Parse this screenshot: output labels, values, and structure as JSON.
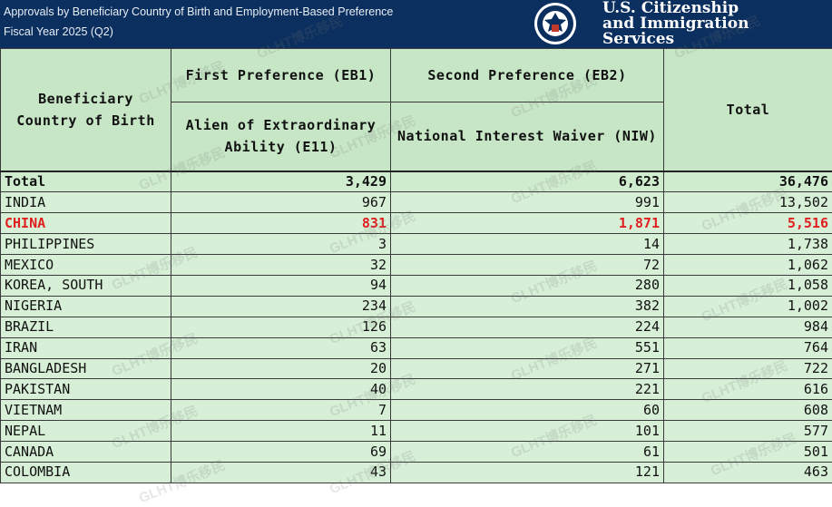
{
  "banner": {
    "title_line1": "Approvals by Beneficiary Country of Birth and Employment-Based Preference",
    "title_line2": "Fiscal Year 2025 (Q2)",
    "agency_line1": "U.S. Citizenship",
    "agency_line2": "and Immigration",
    "agency_line3": "Services",
    "seal_icon": "dhs-seal-icon",
    "bg_color": "#0b2f5e"
  },
  "watermark_text": "GLHT博乐移民",
  "table": {
    "header": {
      "country_col": "Beneficiary Country of Birth",
      "eb1_group": "First Preference (EB1)",
      "eb1_sub": "Alien of Extraordinary Ability (E11)",
      "eb2_group": "Second Preference (EB2)",
      "eb2_sub": "National Interest Waiver (NIW)",
      "total_col": "Total"
    },
    "rows": [
      {
        "country": "Total",
        "e11": "3,429",
        "niw": "6,623",
        "total": "36,476"
      },
      {
        "country": "INDIA",
        "e11": "967",
        "niw": "991",
        "total": "13,502"
      },
      {
        "country": "CHINA",
        "e11": "831",
        "niw": "1,871",
        "total": "5,516"
      },
      {
        "country": "PHILIPPINES",
        "e11": "3",
        "niw": "14",
        "total": "1,738"
      },
      {
        "country": "MEXICO",
        "e11": "32",
        "niw": "72",
        "total": "1,062"
      },
      {
        "country": "KOREA, SOUTH",
        "e11": "94",
        "niw": "280",
        "total": "1,058"
      },
      {
        "country": "NIGERIA",
        "e11": "234",
        "niw": "382",
        "total": "1,002"
      },
      {
        "country": "BRAZIL",
        "e11": "126",
        "niw": "224",
        "total": "984"
      },
      {
        "country": "IRAN",
        "e11": "63",
        "niw": "551",
        "total": "764"
      },
      {
        "country": "BANGLADESH",
        "e11": "20",
        "niw": "271",
        "total": "722"
      },
      {
        "country": "PAKISTAN",
        "e11": "40",
        "niw": "221",
        "total": "616"
      },
      {
        "country": "VIETNAM",
        "e11": "7",
        "niw": "60",
        "total": "608"
      },
      {
        "country": "NEPAL",
        "e11": "11",
        "niw": "101",
        "total": "577"
      },
      {
        "country": "CANADA",
        "e11": "69",
        "niw": "61",
        "total": "501"
      },
      {
        "country": "COLOMBIA",
        "e11": "43",
        "niw": "121",
        "total": "463"
      }
    ],
    "highlight_country": "CHINA",
    "highlight_color": "#e02020",
    "row_bg": "#d6efd6",
    "header_bg": "#c6e6c6"
  }
}
